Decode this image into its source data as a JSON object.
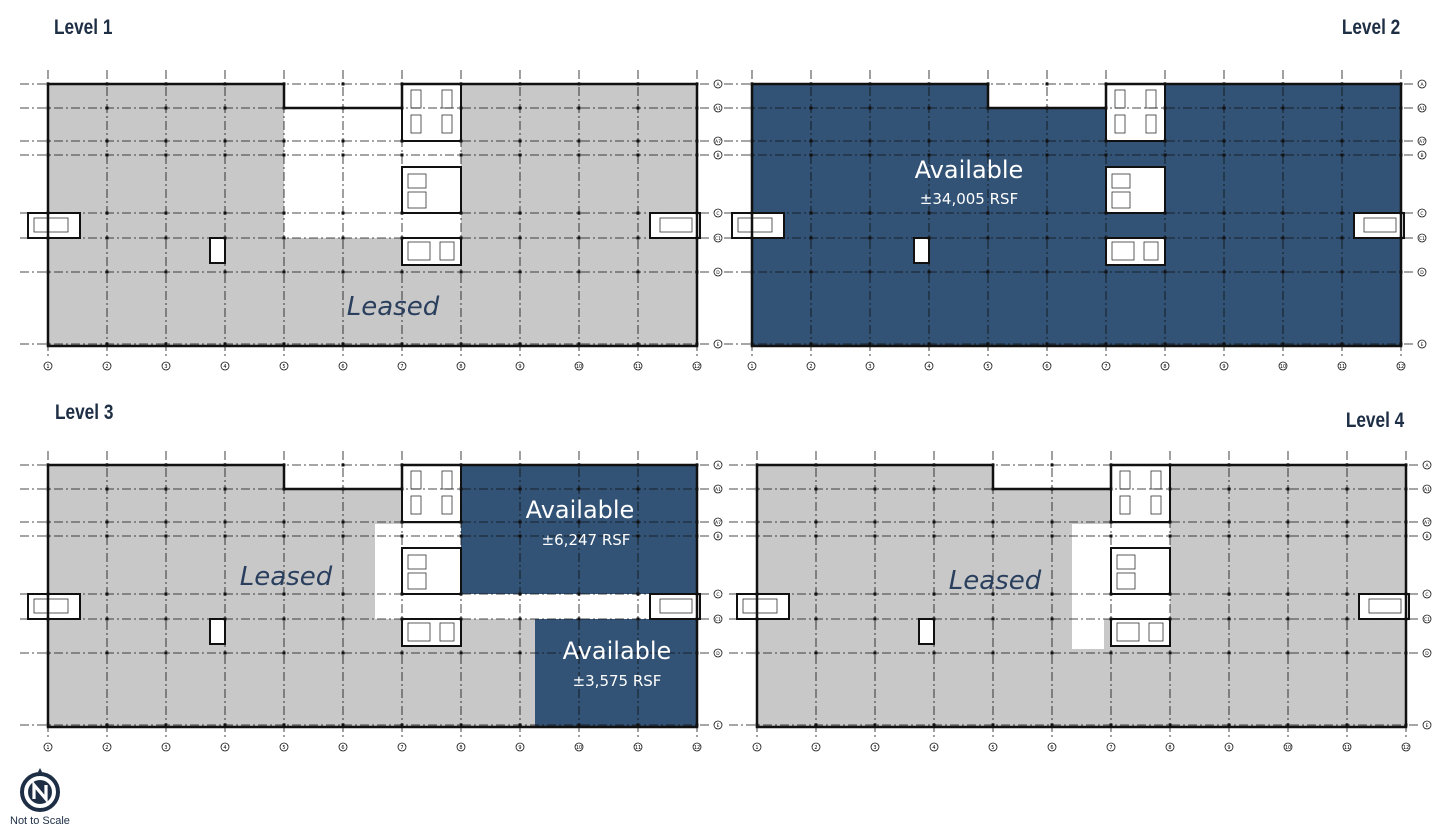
{
  "colors": {
    "leased": "#c8c8c8",
    "available": "#325376",
    "title": "#1d2e45"
  },
  "grid": {
    "columns": [
      "1",
      "2",
      "3",
      "4",
      "5",
      "6",
      "7",
      "8",
      "9",
      "10",
      "11",
      "12"
    ],
    "rows": [
      "A",
      "A1",
      "A7",
      "B",
      "C",
      "C1",
      "D",
      "E"
    ]
  },
  "levels": [
    {
      "title": "Level 1",
      "spaces": [
        {
          "status": "Leased"
        }
      ]
    },
    {
      "title": "Level 2",
      "spaces": [
        {
          "status": "Available",
          "area": "±34,005 RSF"
        }
      ]
    },
    {
      "title": "Level 3",
      "spaces": [
        {
          "status": "Leased"
        },
        {
          "status": "Available",
          "area": "±6,247 RSF"
        },
        {
          "status": "Available",
          "area": "±3,575 RSF"
        }
      ]
    },
    {
      "title": "Level 4",
      "spaces": [
        {
          "status": "Leased"
        }
      ]
    }
  ],
  "legend": {
    "north_icon": "north-arrow-icon",
    "scale_note": "Not to Scale"
  }
}
